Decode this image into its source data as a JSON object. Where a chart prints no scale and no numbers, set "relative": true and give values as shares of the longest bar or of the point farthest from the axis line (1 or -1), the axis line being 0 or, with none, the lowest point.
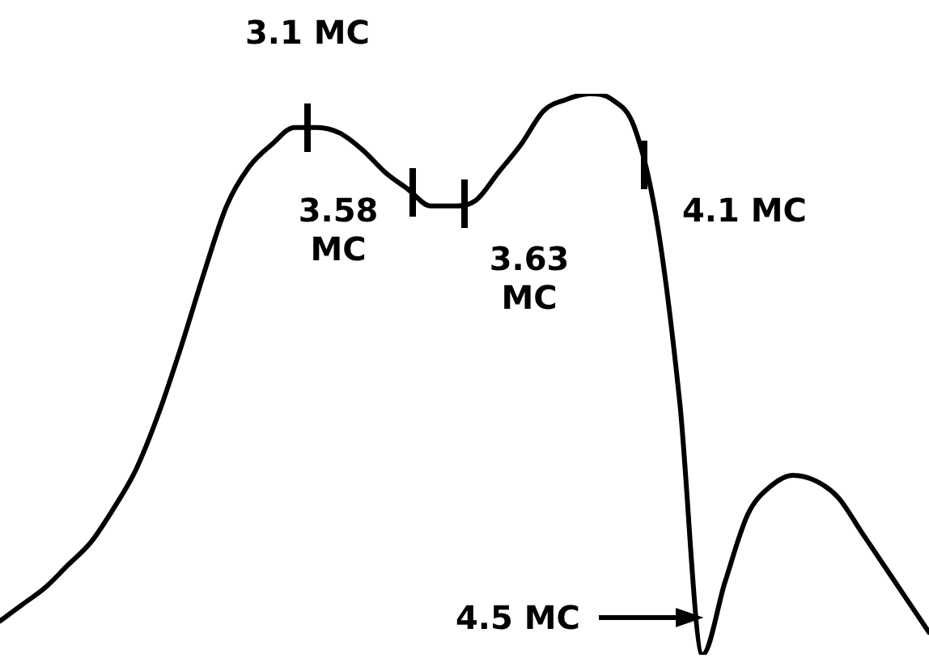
{
  "chart_data": {
    "type": "line",
    "relative": true,
    "color": "#000000",
    "categories": [
      null,
      null,
      null,
      null,
      null,
      null,
      null,
      null,
      null,
      null,
      null,
      null,
      null,
      null,
      null,
      null,
      null,
      null,
      null,
      null,
      null,
      null,
      null,
      null,
      null,
      null,
      null,
      null,
      null,
      null,
      null,
      null,
      null,
      null,
      null,
      null,
      null,
      null,
      null,
      null,
      null,
      null
    ],
    "values": [
      0.06,
      0.09,
      0.12,
      0.16,
      0.2,
      0.26,
      0.33,
      0.43,
      0.55,
      0.68,
      0.8,
      0.87,
      0.91,
      0.94,
      0.94,
      0.93,
      0.9,
      0.86,
      0.83,
      0.8,
      0.8,
      0.81,
      0.86,
      0.91,
      0.97,
      0.99,
      1.0,
      0.99,
      0.94,
      0.77,
      0.45,
      0,
      0.13,
      0.25,
      0.3,
      0.32,
      0.31,
      0.28,
      0.22,
      0.16,
      0.1,
      0.04
    ],
    "annotations": [
      "3.1 MC",
      "3.58 MC",
      "3.63 MC",
      "4.1 MC",
      "4.5 MC"
    ],
    "legend": false,
    "marker": "none",
    "line_style": "solid"
  }
}
